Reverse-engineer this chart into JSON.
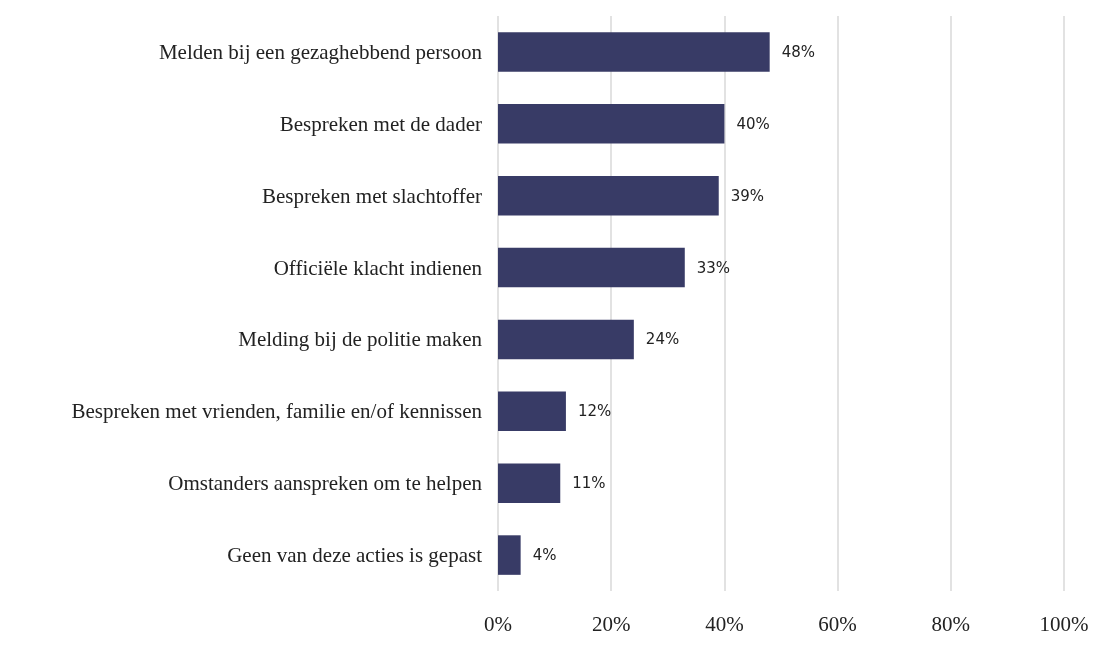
{
  "chart_data": {
    "type": "bar",
    "orientation": "horizontal",
    "categories": [
      "Melden bij een gezaghebbend persoon",
      "Bespreken met de dader",
      "Bespreken met slachtoffer",
      "Officiële klacht indienen",
      "Melding bij de politie maken",
      "Bespreken met vrienden, familie en/of kennissen",
      "Omstanders aanspreken om te helpen",
      "Geen van deze acties is gepast"
    ],
    "values": [
      48,
      40,
      39,
      33,
      24,
      12,
      11,
      4
    ],
    "value_labels": [
      "48%",
      "40%",
      "39%",
      "33%",
      "24%",
      "12%",
      "11%",
      "4%"
    ],
    "color": "#383b66",
    "xlim": [
      0,
      100
    ],
    "xticks": [
      {
        "value": 0,
        "label": "0%"
      },
      {
        "value": 20,
        "label": "20%"
      },
      {
        "value": 40,
        "label": "40%"
      },
      {
        "value": 60,
        "label": "60%"
      },
      {
        "value": 80,
        "label": "80%"
      },
      {
        "value": 100,
        "label": "100%"
      }
    ],
    "grid": "x"
  }
}
